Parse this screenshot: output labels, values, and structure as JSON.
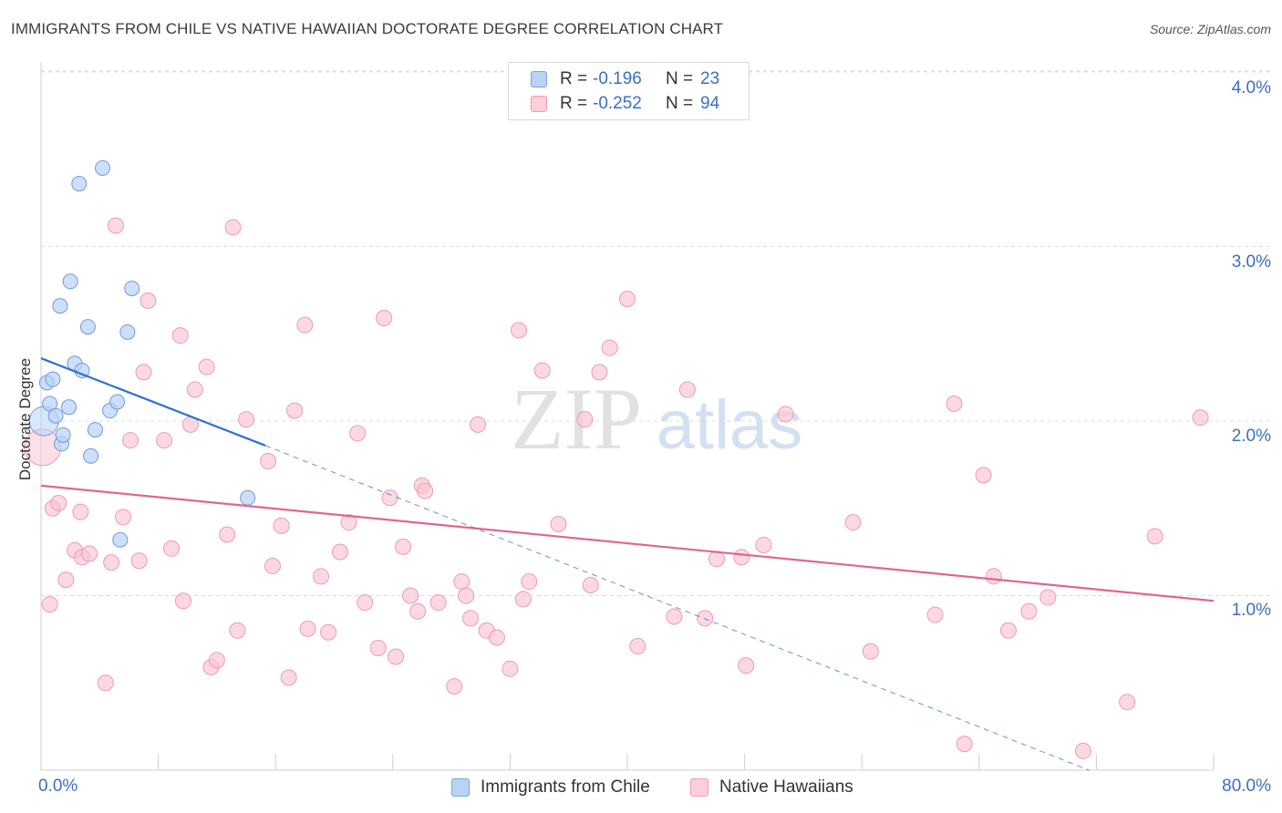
{
  "title": "IMMIGRANTS FROM CHILE VS NATIVE HAWAIIAN DOCTORATE DEGREE CORRELATION CHART",
  "source": "Source: ZipAtlas.com",
  "watermark": {
    "zip": "ZIP",
    "atlas": "atlas"
  },
  "legend": {
    "r_label": "R =",
    "n_label": "N =",
    "series": [
      {
        "r": "-0.196",
        "n": "23",
        "fill": "#b9d3f7",
        "stroke": "#7ba5e3"
      },
      {
        "r": "-0.252",
        "n": "94",
        "fill": "#fccfdb",
        "stroke": "#f19ab3"
      }
    ]
  },
  "colors": {
    "chile_fill": "#b9d3f7",
    "chile_stroke": "#6f9ad8",
    "chile_line": "#2f6fd1",
    "hawaii_fill": "#fac4d3",
    "hawaii_stroke": "#ee9ab2",
    "hawaii_line": "#e0668f",
    "tick_text": "#3b6fc4",
    "grid": "#dcdcdc"
  },
  "chart_data": {
    "type": "scatter",
    "title": "IMMIGRANTS FROM CHILE VS NATIVE HAWAIIAN DOCTORATE DEGREE CORRELATION CHART",
    "xlabel": "",
    "ylabel": "Doctorate Degree",
    "xlim": [
      0,
      80
    ],
    "ylim": [
      0,
      4.2
    ],
    "x_tick_labels": [
      "0.0%",
      "80.0%"
    ],
    "y_ticks": [
      1,
      2,
      3,
      4
    ],
    "y_tick_labels": [
      "1.0%",
      "2.0%",
      "3.0%",
      "4.0%"
    ],
    "grid": "horizontal dashed",
    "legend_placement": "top-center and bottom",
    "series": [
      {
        "name": "Immigrants from Chile",
        "r": -0.196,
        "n": 23,
        "x": [
          0.2,
          0.6,
          0.4,
          0.8,
          1.0,
          1.3,
          1.4,
          1.5,
          1.9,
          2.0,
          2.3,
          2.6,
          2.8,
          3.2,
          3.4,
          3.7,
          4.2,
          4.7,
          5.2,
          5.4,
          5.9,
          6.2,
          14.1
        ],
        "y": [
          2.0,
          2.1,
          2.22,
          2.24,
          2.03,
          2.66,
          1.87,
          1.92,
          2.08,
          2.8,
          2.33,
          3.36,
          2.29,
          2.54,
          1.8,
          1.95,
          3.45,
          2.06,
          2.11,
          1.32,
          2.51,
          2.76,
          1.56
        ],
        "trend": {
          "x": [
            0,
            15.3
          ],
          "y": [
            2.36,
            1.86
          ],
          "extended_x": [
            15.3,
            71.5
          ],
          "extended_y": [
            1.86,
            0.0
          ]
        }
      },
      {
        "name": "Native Hawaiians",
        "r": -0.252,
        "n": 94,
        "x": [
          0.1,
          0.8,
          1.2,
          1.7,
          2.3,
          2.7,
          2.8,
          3.3,
          4.4,
          4.8,
          5.1,
          5.6,
          6.1,
          6.7,
          7.0,
          7.3,
          8.4,
          8.9,
          9.5,
          9.7,
          10.2,
          10.5,
          11.3,
          11.6,
          12.0,
          12.7,
          13.1,
          13.4,
          14.0,
          15.5,
          15.8,
          16.4,
          16.9,
          17.3,
          18.0,
          18.2,
          19.1,
          19.6,
          20.4,
          21.0,
          21.6,
          22.1,
          23.0,
          23.4,
          23.8,
          24.2,
          24.7,
          25.2,
          25.7,
          26.0,
          26.2,
          27.1,
          28.2,
          28.7,
          29.0,
          29.3,
          29.8,
          30.4,
          31.1,
          32.0,
          32.6,
          32.9,
          33.3,
          34.2,
          35.3,
          37.1,
          37.5,
          38.1,
          38.8,
          40.0,
          40.7,
          43.2,
          44.1,
          47.8,
          48.1,
          49.3,
          50.8,
          55.4,
          56.6,
          61.0,
          62.3,
          63.0,
          64.3,
          65.0,
          66.0,
          67.4,
          68.7,
          71.1,
          74.1,
          76.0,
          79.1,
          0.6,
          45.3,
          46.1
        ],
        "y": [
          1.85,
          1.5,
          1.53,
          1.09,
          1.26,
          1.48,
          1.22,
          1.24,
          0.5,
          1.19,
          3.12,
          1.45,
          1.89,
          1.2,
          2.28,
          2.69,
          1.89,
          1.27,
          2.49,
          0.97,
          1.98,
          2.18,
          2.31,
          0.59,
          0.63,
          1.35,
          3.11,
          0.8,
          2.01,
          1.77,
          1.17,
          1.4,
          0.53,
          2.06,
          2.55,
          0.81,
          1.11,
          0.79,
          1.25,
          1.42,
          1.93,
          0.96,
          0.7,
          2.59,
          1.56,
          0.65,
          1.28,
          1.0,
          0.91,
          1.63,
          1.6,
          0.96,
          0.48,
          1.08,
          1.0,
          0.87,
          1.98,
          0.8,
          0.76,
          0.58,
          2.52,
          0.98,
          1.08,
          2.29,
          1.41,
          2.01,
          1.06,
          2.28,
          2.42,
          2.7,
          0.71,
          0.88,
          2.18,
          1.22,
          0.6,
          1.29,
          2.04,
          1.42,
          0.68,
          0.89,
          2.1,
          0.15,
          1.69,
          1.11,
          0.8,
          0.91,
          0.99,
          0.11,
          0.39,
          1.34,
          2.02,
          0.95,
          0.87,
          1.21
        ],
        "trend": {
          "x": [
            0,
            80
          ],
          "y": [
            1.63,
            0.97
          ]
        }
      }
    ]
  },
  "bottom_legend": [
    "Immigrants from Chile",
    "Native Hawaiians"
  ]
}
